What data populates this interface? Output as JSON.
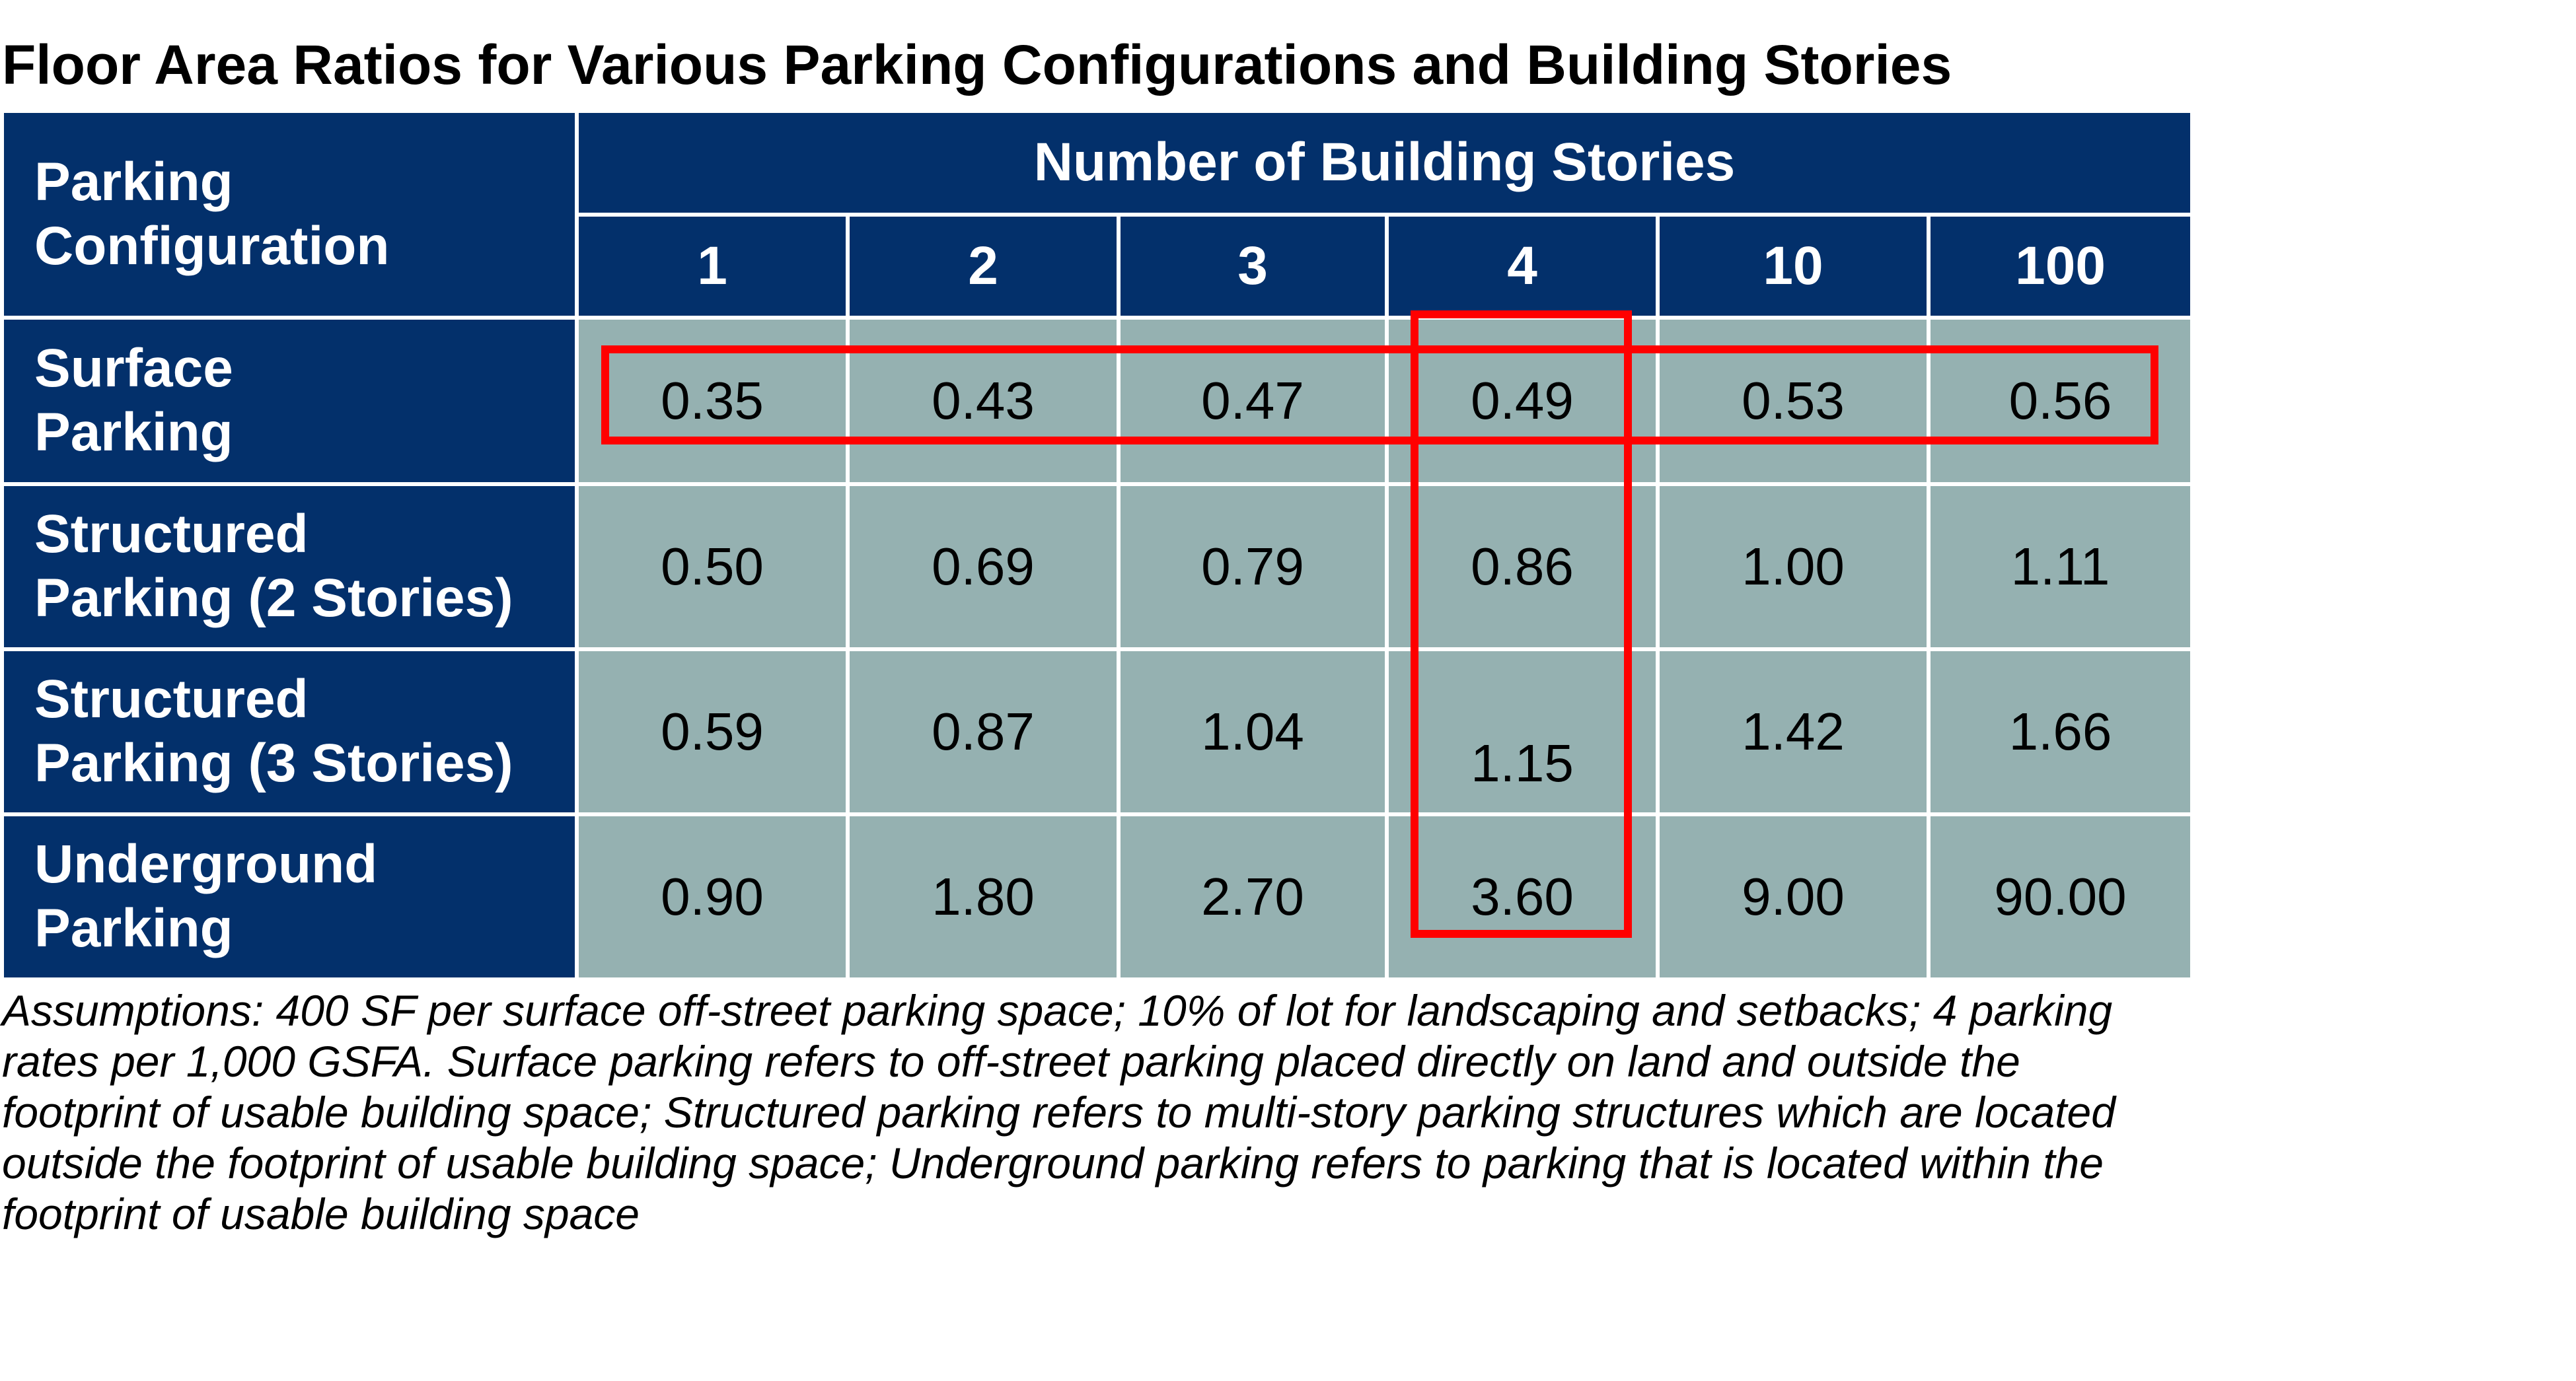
{
  "title": "Floor Area Ratios for Various Parking Configurations and Building Stories",
  "chart_data": {
    "type": "table",
    "title": "Floor Area Ratios for Various Parking Configurations and Building Stories",
    "row_header_label_lines": [
      "Parking",
      "Configuration"
    ],
    "column_group_label": "Number of Building Stories",
    "columns": [
      "1",
      "2",
      "3",
      "4",
      "10",
      "100"
    ],
    "rows": [
      {
        "label_lines": [
          "Surface",
          "Parking"
        ],
        "values": [
          "0.35",
          "0.43",
          "0.47",
          "0.49",
          "0.53",
          "0.56"
        ]
      },
      {
        "label_lines": [
          "Structured",
          "Parking (2 Stories)"
        ],
        "values": [
          "0.50",
          "0.69",
          "0.79",
          "0.86",
          "1.00",
          "1.11"
        ]
      },
      {
        "label_lines": [
          "Structured",
          "Parking (3 Stories)"
        ],
        "values": [
          "0.59",
          "0.87",
          "1.04",
          "1.15",
          "1.42",
          "1.66"
        ]
      },
      {
        "label_lines": [
          "Underground",
          "Parking"
        ],
        "values": [
          "0.90",
          "1.80",
          "2.70",
          "3.60",
          "9.00",
          "90.00"
        ]
      }
    ],
    "highlights": [
      {
        "kind": "row",
        "row": "Surface Parking"
      },
      {
        "kind": "column",
        "column": "4"
      }
    ],
    "colors": {
      "header_fill": "#03306b",
      "cell_fill": "#95b1b1",
      "highlight": "#ff0000"
    }
  },
  "note_lines": [
    "Assumptions: 400 SF per surface off-street parking space; 10% of lot for landscaping and setbacks; 4 parking",
    "rates per 1,000 GSFA. Surface parking refers to off-street parking placed directly on land and outside the",
    "footprint of usable building space; Structured parking refers to multi-story parking structures which are located",
    "outside the footprint of usable building space; Underground parking refers to parking that is located within the",
    "footprint of usable building space"
  ]
}
